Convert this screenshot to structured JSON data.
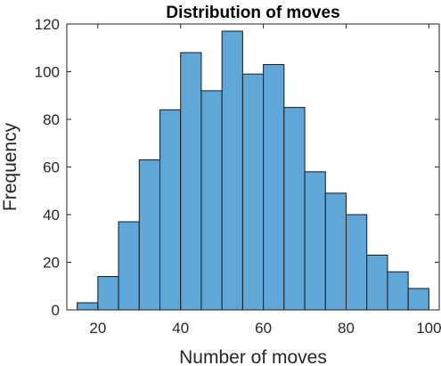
{
  "chart_data": {
    "type": "bar",
    "title": "Distribution of moves",
    "xlabel": "Number of moves",
    "ylabel": "Frequency",
    "xlim": [
      12.5,
      102.5
    ],
    "ylim": [
      0,
      120
    ],
    "xticks": [
      20,
      40,
      60,
      80,
      100
    ],
    "yticks": [
      0,
      20,
      40,
      60,
      80,
      100,
      120
    ],
    "bin_edges": [
      15,
      20,
      25,
      30,
      35,
      40,
      45,
      50,
      55,
      60,
      65,
      70,
      75,
      80,
      85,
      90,
      95,
      100
    ],
    "values": [
      3,
      14,
      37,
      63,
      84,
      108,
      92,
      117,
      99,
      103,
      85,
      58,
      49,
      40,
      23,
      16,
      9
    ],
    "bar_color": "#5fa6d9",
    "edge_color": "#1a1a1a",
    "grid": false,
    "box": true
  }
}
